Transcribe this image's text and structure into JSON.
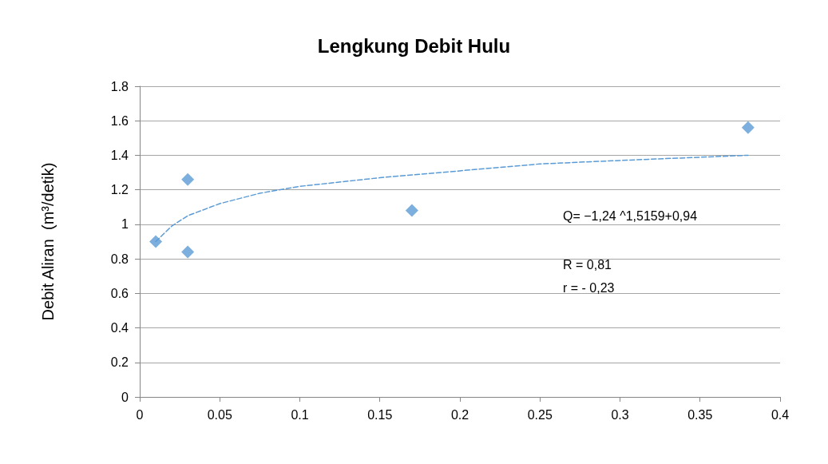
{
  "chart_data": {
    "type": "scatter",
    "title": "Lengkung Debit Hulu",
    "ylabel": "Debit Aliran  (m³/detik)",
    "x": [
      0.01,
      0.03,
      0.03,
      0.17,
      0.38
    ],
    "series": [
      {
        "color": "#5b9bd5",
        "marker": "diamond",
        "values": [
          0.9,
          1.26,
          0.84,
          1.08,
          1.56
        ]
      },
      {
        "type": "line",
        "color": "#5b9bd5",
        "marker": "none",
        "line_style": "dashed",
        "x": [
          0.01,
          0.02,
          0.03,
          0.05,
          0.075,
          0.1,
          0.15,
          0.2,
          0.25,
          0.3,
          0.38
        ],
        "values": [
          0.9,
          0.99,
          1.05,
          1.12,
          1.18,
          1.22,
          1.27,
          1.31,
          1.35,
          1.37,
          1.4
        ]
      }
    ],
    "xlim": [
      0,
      0.4
    ],
    "xticks": [
      0,
      0.05,
      0.1,
      0.15,
      0.2,
      0.25,
      0.3,
      0.35,
      0.4
    ],
    "ylim": [
      0,
      1.8
    ],
    "yticks": [
      0,
      0.2,
      0.4,
      0.6,
      0.8,
      1,
      1.2,
      1.4,
      1.6,
      1.8
    ],
    "grid": "y",
    "annotations": [
      "Q= −1,24 ^1,5159+0,94",
      "R = 0,81",
      "r = - 0,23"
    ]
  }
}
